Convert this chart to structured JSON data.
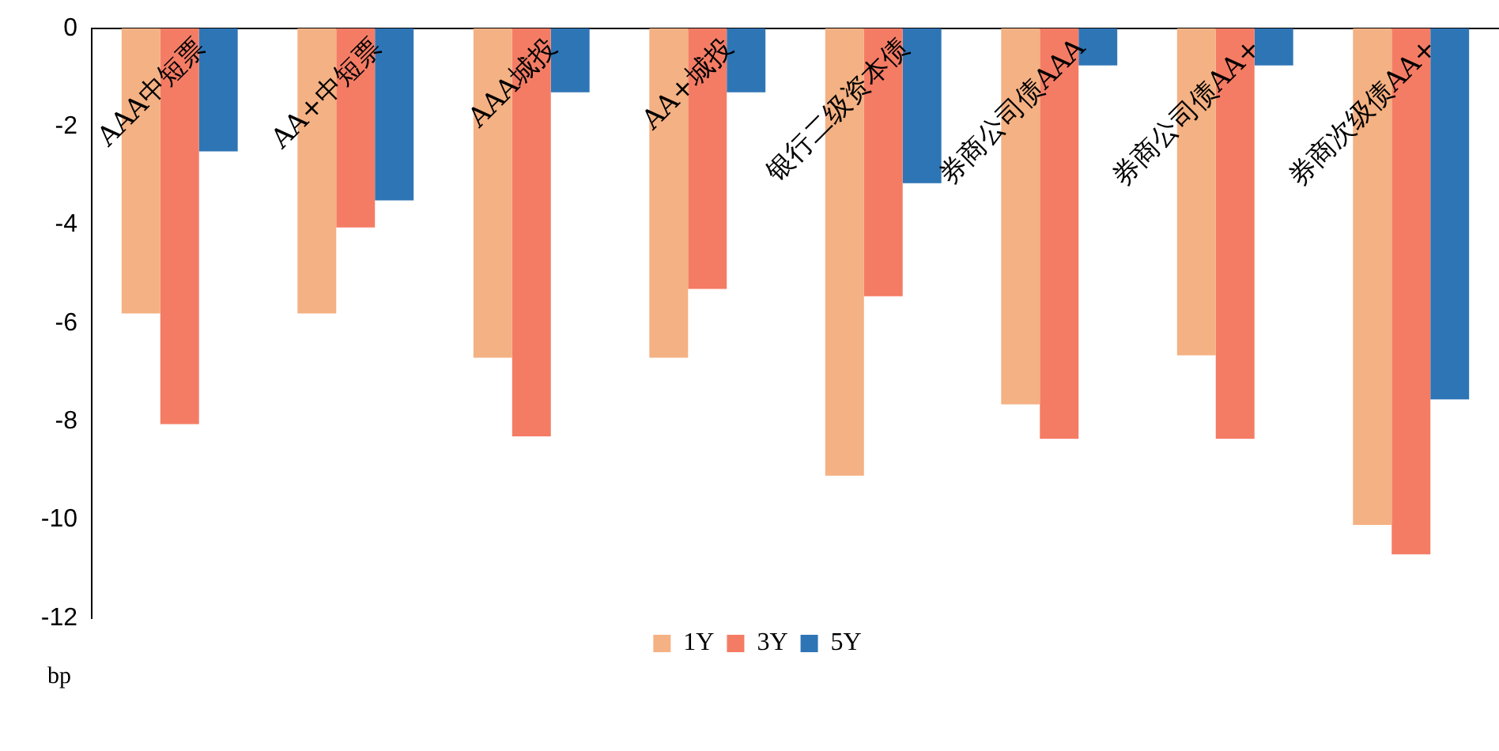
{
  "chart_data": {
    "type": "bar",
    "ylabel": "bp",
    "categories": [
      "AAA中短票",
      "AA+中短票",
      "AAA城投",
      "AA+城投",
      "银行二级资本债",
      "券商公司债AAA",
      "券商公司债AA+",
      "券商次级债AA+"
    ],
    "series": [
      {
        "name": "1Y",
        "color": "#f4b183",
        "values": [
          -5.8,
          -5.8,
          -6.7,
          -6.7,
          -9.1,
          -7.65,
          -6.65,
          -10.1
        ]
      },
      {
        "name": "3Y",
        "color": "#f47c65",
        "values": [
          -8.05,
          -4.05,
          -8.3,
          -5.3,
          -5.45,
          -8.35,
          -8.35,
          -10.7
        ]
      },
      {
        "name": "5Y",
        "color": "#2e75b6",
        "values": [
          -2.5,
          -3.5,
          -1.3,
          -1.3,
          -3.15,
          -0.75,
          -0.75,
          -7.55
        ]
      }
    ],
    "ylim": [
      -12,
      0
    ],
    "yticks": [
      0,
      -2,
      -4,
      -6,
      -8,
      -10,
      -12
    ],
    "grid": false,
    "legend": "bottom"
  }
}
